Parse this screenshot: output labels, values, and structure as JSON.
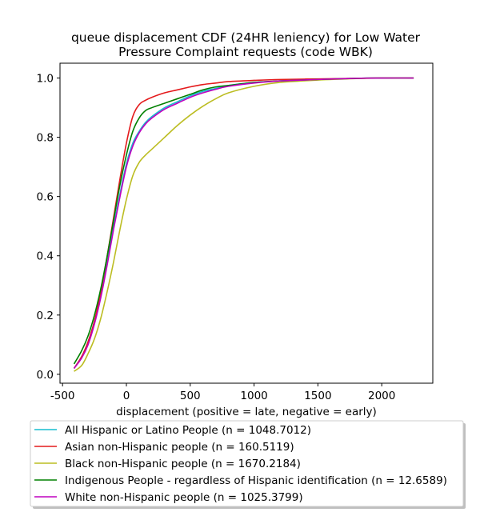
{
  "chart_data": {
    "type": "line",
    "title_lines": [
      "queue displacement CDF (24HR leniency) for Low Water",
      "Pressure Complaint  requests (code WBK)"
    ],
    "xlabel": "displacement (positive = late, negative = early)",
    "ylabel": "",
    "xlim": [
      -520,
      2400
    ],
    "ylim": [
      -0.03,
      1.05
    ],
    "xticks": [
      -500,
      0,
      500,
      1000,
      1500,
      2000
    ],
    "xtick_labels": [
      "-500",
      "0",
      "500",
      "1000",
      "1500",
      "2000"
    ],
    "yticks": [
      0.0,
      0.2,
      0.4,
      0.6,
      0.8,
      1.0
    ],
    "ytick_labels": [
      "0.0",
      "0.2",
      "0.4",
      "0.6",
      "0.8",
      "1.0"
    ],
    "grid": false,
    "legend_position": "below",
    "series": [
      {
        "name": "All Hispanic or Latino People (n = 1048.7012)",
        "color": "#17becf",
        "x": [
          -410,
          -350,
          -300,
          -250,
          -200,
          -150,
          -100,
          -50,
          0,
          50,
          100,
          150,
          200,
          300,
          400,
          500,
          600,
          700,
          800,
          1000,
          1200,
          1500,
          1800,
          2000,
          2250
        ],
        "y": [
          0.02,
          0.06,
          0.11,
          0.18,
          0.27,
          0.38,
          0.5,
          0.61,
          0.71,
          0.78,
          0.82,
          0.85,
          0.87,
          0.9,
          0.92,
          0.94,
          0.955,
          0.965,
          0.975,
          0.985,
          0.99,
          0.995,
          0.999,
          1.0,
          1.0
        ]
      },
      {
        "name": "Asian non-Hispanic people (n = 160.5119)",
        "color": "#e41a1c",
        "x": [
          -410,
          -350,
          -300,
          -250,
          -200,
          -150,
          -100,
          -50,
          0,
          50,
          100,
          150,
          200,
          300,
          400,
          500,
          600,
          700,
          800,
          1000,
          1200,
          1500,
          1800,
          2000,
          2250
        ],
        "y": [
          0.02,
          0.06,
          0.11,
          0.18,
          0.28,
          0.4,
          0.53,
          0.66,
          0.78,
          0.87,
          0.91,
          0.925,
          0.935,
          0.95,
          0.96,
          0.97,
          0.978,
          0.983,
          0.988,
          0.992,
          0.995,
          0.997,
          0.999,
          1.0,
          1.0
        ]
      },
      {
        "name": "Black non-Hispanic people (n = 1670.2184)",
        "color": "#bcbd22",
        "x": [
          -410,
          -350,
          -300,
          -250,
          -200,
          -150,
          -100,
          -50,
          0,
          50,
          100,
          150,
          200,
          300,
          400,
          500,
          600,
          700,
          800,
          1000,
          1200,
          1500,
          1800,
          2000,
          2250
        ],
        "y": [
          0.01,
          0.03,
          0.07,
          0.12,
          0.19,
          0.28,
          0.38,
          0.49,
          0.59,
          0.67,
          0.715,
          0.74,
          0.76,
          0.8,
          0.84,
          0.875,
          0.905,
          0.93,
          0.95,
          0.972,
          0.985,
          0.993,
          0.998,
          1.0,
          1.0
        ]
      },
      {
        "name": "Indigenous People - regardless of Hispanic identification (n = 12.6589)",
        "color": "#008000",
        "x": [
          -410,
          -350,
          -300,
          -250,
          -200,
          -150,
          -100,
          -50,
          0,
          50,
          100,
          150,
          200,
          300,
          400,
          500,
          600,
          700,
          800,
          1000,
          1200,
          1500,
          1800,
          2000,
          2250
        ],
        "y": [
          0.035,
          0.08,
          0.13,
          0.2,
          0.29,
          0.4,
          0.52,
          0.64,
          0.74,
          0.82,
          0.865,
          0.89,
          0.9,
          0.915,
          0.93,
          0.945,
          0.96,
          0.97,
          0.975,
          0.985,
          0.99,
          0.995,
          0.999,
          1.0,
          1.0
        ]
      },
      {
        "name": "White non-Hispanic people (n = 1025.3799)",
        "color": "#bf00bf",
        "x": [
          -410,
          -350,
          -300,
          -250,
          -200,
          -150,
          -100,
          -50,
          0,
          50,
          100,
          150,
          200,
          300,
          400,
          500,
          600,
          700,
          800,
          1000,
          1200,
          1500,
          1800,
          2000,
          2250
        ],
        "y": [
          0.02,
          0.055,
          0.1,
          0.17,
          0.26,
          0.37,
          0.49,
          0.6,
          0.7,
          0.77,
          0.815,
          0.845,
          0.865,
          0.895,
          0.915,
          0.935,
          0.95,
          0.962,
          0.972,
          0.983,
          0.99,
          0.995,
          0.999,
          1.0,
          1.0
        ]
      }
    ]
  }
}
